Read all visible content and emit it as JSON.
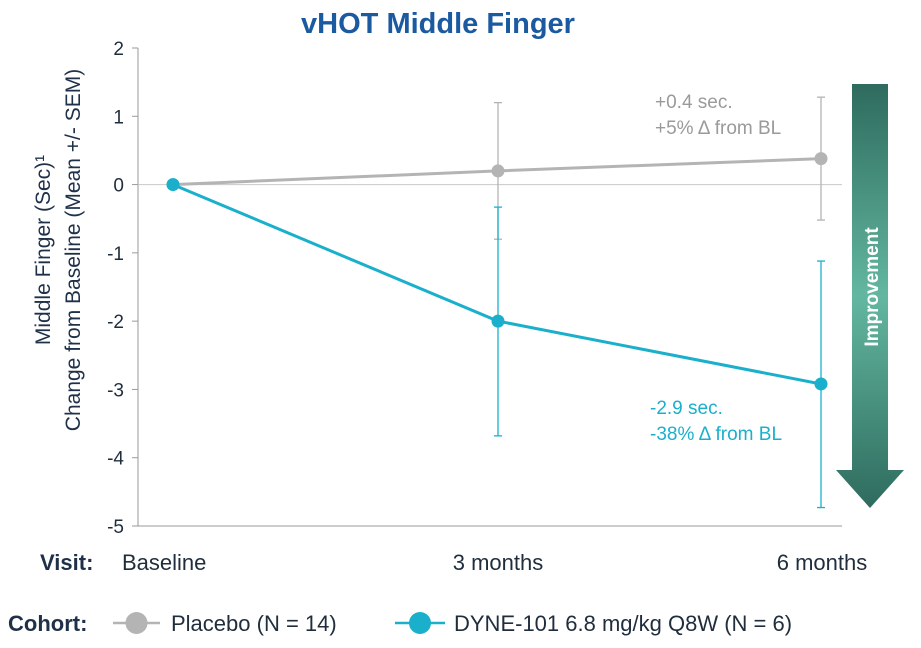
{
  "chart_data": {
    "type": "line",
    "title": "vHOT Middle Finger",
    "ylabel_line1": "Middle Finger (Sec)¹",
    "ylabel_line2": "Change from Baseline (Mean +/- SEM)",
    "ylim": [
      -5,
      2
    ],
    "yticks": [
      2,
      1,
      0,
      -1,
      -2,
      -3,
      -4,
      -5
    ],
    "categories": [
      "Baseline",
      "3 months",
      "6 months"
    ],
    "x_axis_label": "Visit:",
    "legend_label": "Cohort:",
    "series": [
      {
        "name": "Placebo (N = 14)",
        "color": "#b4b4b4",
        "values": [
          0,
          0.2,
          0.38
        ],
        "err_low": [
          0,
          -0.8,
          -0.52
        ],
        "err_high": [
          0,
          1.2,
          1.28
        ]
      },
      {
        "name": "DYNE-101 6.8 mg/kg Q8W (N = 6)",
        "color": "#1ab0cc",
        "values": [
          0,
          -2.0,
          -2.92
        ],
        "err_low": [
          0,
          -3.68,
          -4.73
        ],
        "err_high": [
          0,
          -0.33,
          -1.12
        ]
      }
    ],
    "annotations": [
      {
        "series": 0,
        "lines": [
          "+0.4 sec.",
          "+5% Δ from BL"
        ],
        "color": "#9a9a9a"
      },
      {
        "series": 1,
        "lines": [
          "-2.9 sec.",
          "-38% Δ from BL"
        ],
        "color": "#1ab0cc"
      }
    ],
    "arrow_label": "Improvement",
    "grid": false,
    "legend_position": "bottom"
  },
  "colors": {
    "title": "#1b5aa0",
    "axis_text": "#1f3049",
    "arrow_top": "#2e6b5e",
    "arrow_mid": "#5fb39c",
    "arrow_bottom": "#2e6b5e"
  }
}
